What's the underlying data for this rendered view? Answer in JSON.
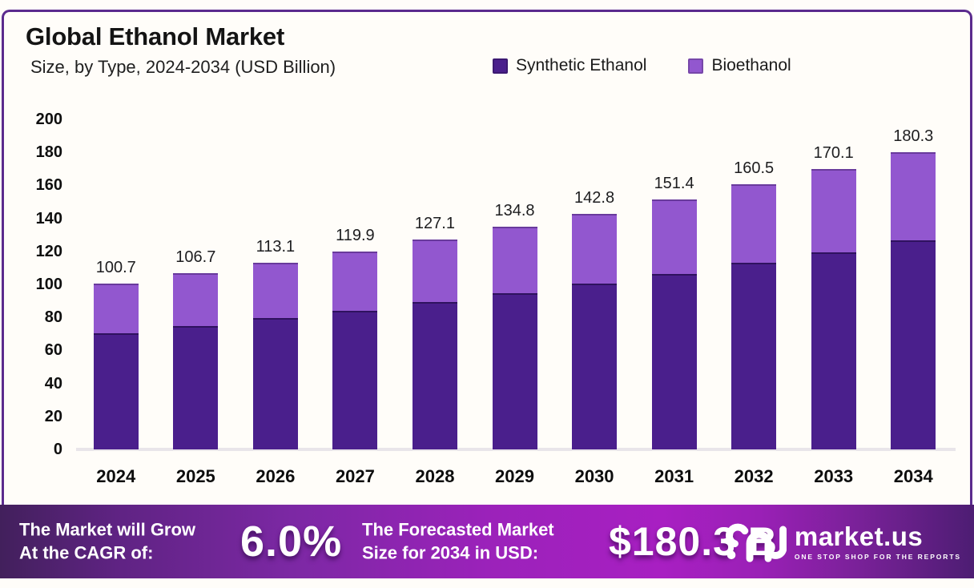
{
  "header": {
    "title": "Global Ethanol Market",
    "subtitle": "Size, by Type, 2024-2034 (USD Billion)"
  },
  "legend": [
    {
      "label": "Synthetic Ethanol",
      "color": "#4a1f8c"
    },
    {
      "label": "Bioethanol",
      "color": "#9257cf"
    }
  ],
  "chart_data": {
    "type": "bar",
    "stacked": true,
    "title": "Global Ethanol Market Size, by Type, 2024-2034 (USD Billion)",
    "categories": [
      "2024",
      "2025",
      "2026",
      "2027",
      "2028",
      "2029",
      "2030",
      "2031",
      "2032",
      "2033",
      "2034"
    ],
    "series": [
      {
        "name": "Synthetic Ethanol",
        "color": "#4a1f8c",
        "values": [
          71.0,
          75.3,
          79.8,
          84.6,
          89.7,
          95.1,
          100.8,
          106.8,
          113.3,
          120.0,
          127.2
        ],
        "note": "estimated from bar split positions"
      },
      {
        "name": "Bioethanol",
        "color": "#9257cf",
        "values": [
          29.7,
          31.4,
          33.3,
          35.3,
          37.4,
          39.7,
          42.0,
          44.6,
          47.2,
          50.1,
          53.1
        ],
        "note": "estimated from bar split positions"
      }
    ],
    "totals": [
      100.7,
      106.7,
      113.1,
      119.9,
      127.1,
      134.8,
      142.8,
      151.4,
      160.5,
      170.1,
      180.3
    ],
    "total_labels": [
      "100.7",
      "106.7",
      "113.1",
      "119.9",
      "127.1",
      "134.8",
      "142.8",
      "151.4",
      "160.5",
      "170.1",
      "180.3"
    ],
    "xlabel": "",
    "ylabel": "",
    "ylim": [
      0,
      200
    ],
    "yticks": [
      0,
      20,
      40,
      60,
      80,
      100,
      120,
      140,
      160,
      180,
      200
    ],
    "grid": false,
    "legend_position": "top-right"
  },
  "footer": {
    "cagr_label_line1": "The Market will Grow",
    "cagr_label_line2": "At the CAGR of:",
    "cagr_value": "6.0%",
    "forecast_label_line1": "The Forecasted Market",
    "forecast_label_line2": "Size for 2034 in USD:",
    "forecast_value": "$180.3 B",
    "brand_name": "market.us",
    "brand_tagline": "ONE STOP SHOP FOR THE REPORTS"
  },
  "colors": {
    "frame_border": "#5b2b8e",
    "synthetic": "#4a1f8c",
    "bioethanol": "#9257cf",
    "banner_left": "#42205c",
    "banner_bright": "#a81fc2",
    "banner_right": "#4d1d73",
    "baseline": "#e9e5ea",
    "background": "#fffdf9"
  }
}
